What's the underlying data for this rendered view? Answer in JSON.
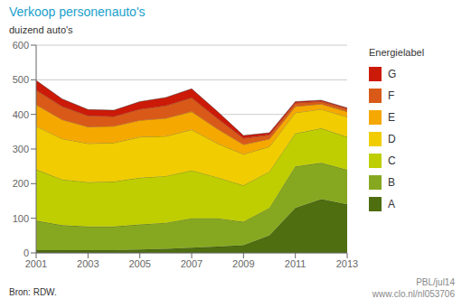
{
  "chart_data": {
    "type": "area",
    "title": "Verkoop personenauto's",
    "ylabel": "duizend auto's",
    "x": [
      2001,
      2002,
      2003,
      2004,
      2005,
      2006,
      2007,
      2008,
      2009,
      2010,
      2011,
      2012,
      2013
    ],
    "series": [
      {
        "name": "A",
        "color": "#4e6e10",
        "values": [
          8,
          8,
          8,
          8,
          10,
          12,
          15,
          18,
          22,
          50,
          130,
          155,
          140
        ]
      },
      {
        "name": "B",
        "color": "#86a820",
        "values": [
          85,
          72,
          68,
          68,
          72,
          75,
          85,
          82,
          68,
          80,
          120,
          105,
          100
        ]
      },
      {
        "name": "C",
        "color": "#bece00",
        "values": [
          148,
          132,
          128,
          130,
          135,
          135,
          138,
          118,
          105,
          105,
          95,
          100,
          95
        ]
      },
      {
        "name": "D",
        "color": "#f0cc00",
        "values": [
          125,
          118,
          112,
          112,
          118,
          115,
          118,
          98,
          90,
          72,
          60,
          55,
          58
        ]
      },
      {
        "name": "E",
        "color": "#f5a800",
        "values": [
          62,
          55,
          48,
          48,
          48,
          52,
          52,
          42,
          28,
          22,
          18,
          15,
          15
        ]
      },
      {
        "name": "F",
        "color": "#d95a18",
        "values": [
          42,
          38,
          32,
          28,
          32,
          36,
          40,
          30,
          18,
          12,
          10,
          8,
          8
        ]
      },
      {
        "name": "G",
        "color": "#cc1a08",
        "values": [
          28,
          22,
          18,
          18,
          22,
          24,
          26,
          20,
          8,
          6,
          4,
          3,
          3
        ]
      }
    ],
    "xlim": [
      2001,
      2013
    ],
    "xticks": [
      2001,
      2003,
      2005,
      2007,
      2009,
      2011,
      2013
    ],
    "ylim": [
      0,
      600
    ],
    "yticks": [
      0,
      100,
      200,
      300,
      400,
      500,
      600
    ],
    "stacked": true,
    "grid": true,
    "legend": "right",
    "legend_title": "Energielabel",
    "annotations": [
      "Bron: RDW.",
      "PBL/jul14",
      "www.clo.nl/nl053706"
    ]
  }
}
